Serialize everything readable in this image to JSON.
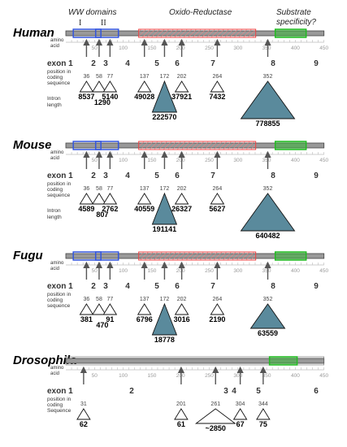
{
  "headers": {
    "ww": "WW domains",
    "ww_i": "I",
    "ww_ii": "II",
    "oxido": "Oxido-Reductase",
    "substrate_1": "Substrate",
    "substrate_2": "specificity?"
  },
  "labels": {
    "amino": "amino",
    "acid": "acid",
    "position_lines": [
      "position in",
      "coding",
      "sequence"
    ],
    "drosophila_position_lines": [
      "position in",
      "coding",
      "Sequence"
    ],
    "intron_lines": [
      "Intron",
      "length"
    ]
  },
  "axis": {
    "start": 0,
    "end": 450,
    "ticks": [
      50,
      100,
      150,
      200,
      250,
      300,
      350,
      400,
      450
    ]
  },
  "colors": {
    "ww_domain": "#3355dd",
    "oxido": "#ee4444",
    "substrate": "#22bb22",
    "protein_bar": "#999999",
    "big_triangle": "#5a8a9c",
    "arrow": "#555555"
  },
  "panels": [
    {
      "species": "Human",
      "show_headers": true,
      "show_intron_label": true,
      "exons": [
        "exon 1",
        "2",
        "3",
        "4",
        "5",
        "6",
        "7",
        "8",
        "9"
      ],
      "junctions": [
        36,
        58,
        77,
        137,
        172,
        202,
        264,
        352
      ],
      "introns": [
        {
          "label": "8537",
          "size": "small",
          "row": "upper"
        },
        {
          "label": "1290",
          "size": "small",
          "row": "lower"
        },
        {
          "label": "5140",
          "size": "small",
          "row": "upper"
        },
        {
          "label": "49028",
          "size": "small",
          "row": "upper"
        },
        {
          "label": "222570",
          "size": "large",
          "row": "upper"
        },
        {
          "label": "37921",
          "size": "small",
          "row": "upper"
        },
        {
          "label": "7432",
          "size": "small",
          "row": "upper"
        },
        {
          "label": "778855",
          "size": "xlarge",
          "row": "upper"
        }
      ]
    },
    {
      "species": "Mouse",
      "show_headers": false,
      "show_intron_label": true,
      "exons": [
        "exon 1",
        "2",
        "3",
        "4",
        "5",
        "6",
        "7",
        "8",
        "9"
      ],
      "junctions": [
        36,
        58,
        77,
        137,
        172,
        202,
        264,
        352
      ],
      "introns": [
        {
          "label": "4589",
          "size": "small",
          "row": "upper"
        },
        {
          "label": "807",
          "size": "small",
          "row": "lower"
        },
        {
          "label": "2762",
          "size": "small",
          "row": "upper"
        },
        {
          "label": "40559",
          "size": "small",
          "row": "upper"
        },
        {
          "label": "191141",
          "size": "large",
          "row": "upper"
        },
        {
          "label": "26327",
          "size": "small",
          "row": "upper"
        },
        {
          "label": "5627",
          "size": "small",
          "row": "upper"
        },
        {
          "label": "640482",
          "size": "xlarge",
          "row": "upper"
        }
      ]
    },
    {
      "species": "Fugu",
      "show_headers": false,
      "show_intron_label": false,
      "exons": [
        "exon 1",
        "2",
        "3",
        "4",
        "5",
        "6",
        "7",
        "8",
        "9"
      ],
      "junctions": [
        36,
        58,
        77,
        137,
        172,
        202,
        264,
        352
      ],
      "introns": [
        {
          "label": "381",
          "size": "small",
          "row": "upper"
        },
        {
          "label": "470",
          "size": "small",
          "row": "lower"
        },
        {
          "label": "91",
          "size": "small",
          "row": "upper"
        },
        {
          "label": "6796",
          "size": "small",
          "row": "upper"
        },
        {
          "label": "18778",
          "size": "large",
          "row": "upper"
        },
        {
          "label": "3016",
          "size": "small",
          "row": "upper"
        },
        {
          "label": "2190",
          "size": "small",
          "row": "upper"
        },
        {
          "label": "63559",
          "size": "medium",
          "row": "upper"
        }
      ]
    },
    {
      "species": "Drosophila",
      "show_headers": false,
      "show_intron_label": false,
      "exons": [
        "exon 1",
        "2",
        "3",
        "4",
        "5",
        "6"
      ],
      "junctions": [
        31,
        201,
        261,
        304,
        344
      ],
      "introns": [
        {
          "label": "62",
          "size": "small",
          "row": "upper"
        },
        {
          "label": "61",
          "size": "small",
          "row": "upper"
        },
        {
          "label": "~2850",
          "size": "wide",
          "row": "upper"
        },
        {
          "label": "67",
          "size": "small",
          "row": "upper"
        },
        {
          "label": "75",
          "size": "small",
          "row": "upper"
        }
      ]
    }
  ]
}
